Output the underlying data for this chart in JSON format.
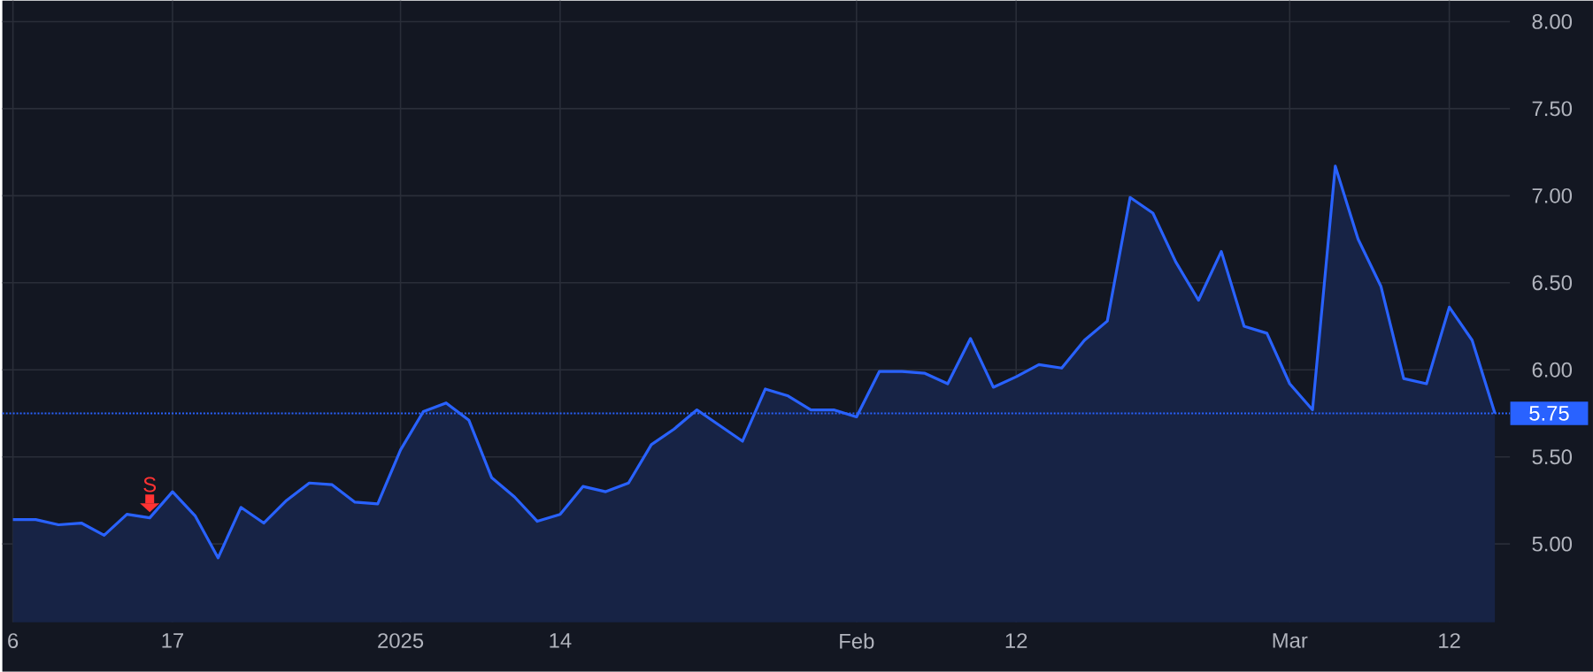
{
  "chart_data": {
    "type": "area",
    "categories": [
      "6",
      null,
      null,
      null,
      null,
      null,
      null,
      "17",
      null,
      null,
      null,
      null,
      null,
      null,
      null,
      null,
      null,
      "2025",
      null,
      null,
      null,
      null,
      null,
      null,
      "14",
      null,
      null,
      null,
      null,
      null,
      null,
      null,
      null,
      null,
      null,
      null,
      null,
      "Feb",
      null,
      null,
      null,
      null,
      null,
      null,
      "12",
      null,
      null,
      null,
      null,
      null,
      null,
      null,
      null,
      null,
      null,
      null,
      "Mar",
      null,
      null,
      null,
      null,
      null,
      null,
      "12",
      null,
      null
    ],
    "series": [
      {
        "color": "#2962ff",
        "values": [
          5.14,
          5.14,
          5.11,
          5.12,
          5.05,
          5.17,
          5.15,
          5.3,
          5.16,
          4.92,
          5.21,
          5.12,
          5.25,
          5.35,
          5.34,
          5.24,
          5.23,
          5.54,
          5.76,
          5.81,
          5.71,
          5.38,
          5.27,
          5.13,
          5.17,
          5.33,
          5.3,
          5.35,
          5.57,
          5.66,
          5.77,
          5.68,
          5.59,
          5.89,
          5.85,
          5.77,
          5.77,
          5.73,
          5.99,
          5.99,
          5.98,
          5.92,
          6.18,
          5.9,
          5.96,
          6.03,
          6.01,
          6.17,
          6.28,
          6.99,
          6.9,
          6.62,
          6.4,
          6.68,
          6.25,
          6.21,
          5.92,
          5.77,
          7.17,
          6.75,
          6.48,
          5.95,
          5.92,
          6.36,
          6.17,
          5.75
        ]
      }
    ],
    "ylim": [
      4.55,
      8.12
    ],
    "yticks": [
      {
        "value": 5,
        "label": "5.00"
      },
      {
        "value": 5.5,
        "label": "5.50"
      },
      {
        "value": 6,
        "label": "6.00"
      },
      {
        "value": 6.5,
        "label": "6.50"
      },
      {
        "value": 7,
        "label": "7.00"
      },
      {
        "value": 7.5,
        "label": "7.50"
      },
      {
        "value": 8,
        "label": "8.00"
      }
    ],
    "grid": true,
    "ref_lines": [
      {
        "axis": "y",
        "value": 5.75,
        "label": "5.75",
        "color": "#2962ff",
        "line_style": "dotted"
      }
    ],
    "annotations": [
      {
        "text": "S",
        "y": 5.15
      }
    ]
  }
}
